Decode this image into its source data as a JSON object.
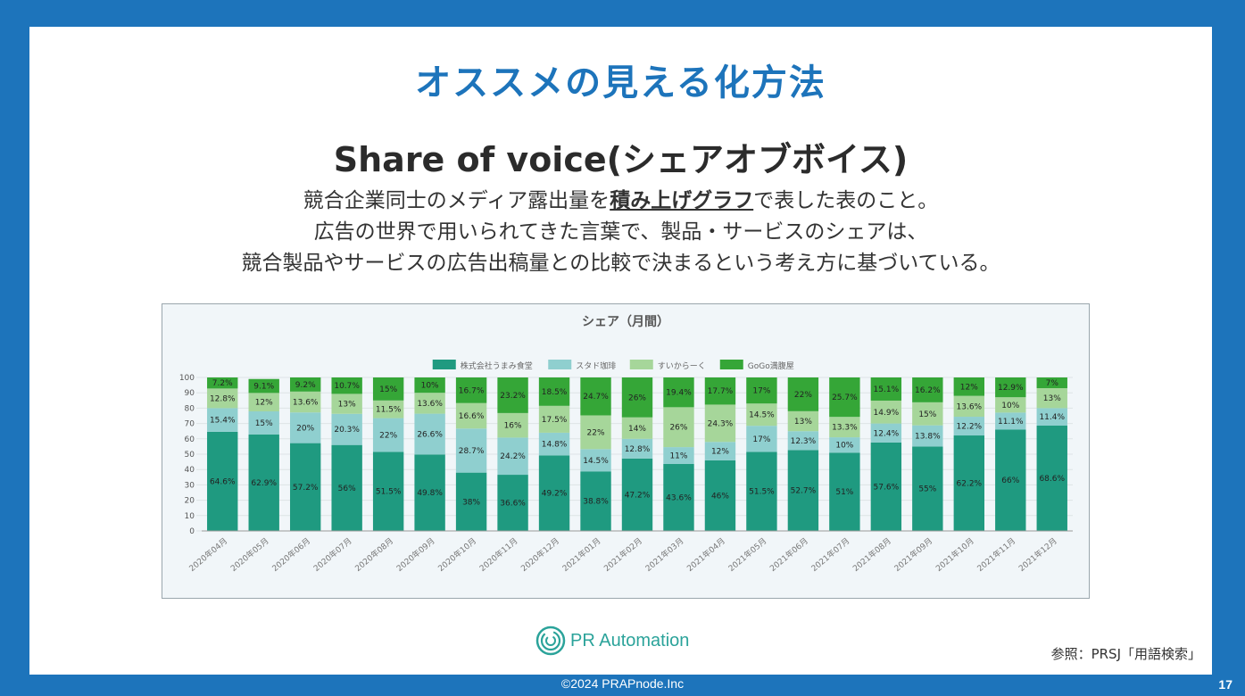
{
  "slide": {
    "title": "オススメの見える化方法",
    "subtitle": "Share of voice(シェアオブボイス)",
    "desc_line1_pre": "競合企業同士のメディア露出量を",
    "desc_line1_emph": "積み上げグラフ",
    "desc_line1_post": "で表した表のこと。",
    "desc_line2": "広告の世界で用いられてきた言葉で、製品・サービスのシェアは、",
    "desc_line3": "競合製品やサービスの広告出稿量との比較で決まるという考え方に基づいている。",
    "reference": "参照：PRSJ「用語検索」",
    "logo_text": "PR Automation"
  },
  "footer": {
    "copyright": "©2024 PRAPnode.Inc",
    "page_number": "17"
  },
  "colors": {
    "frame": "#1d74bb",
    "title": "#1d74bb",
    "series1": "#1f9a80",
    "series2": "#8fcfcf",
    "series3": "#a6d69a",
    "series4": "#35a637"
  },
  "chart_data": {
    "type": "bar",
    "stacked": true,
    "title": "シェア（月間）",
    "ylim": [
      0,
      100
    ],
    "yticks": [
      "0",
      "10",
      "20",
      "30",
      "40",
      "50",
      "60",
      "70",
      "80",
      "90",
      "100"
    ],
    "grid": true,
    "legend_position": "top",
    "categories": [
      "2020年04月",
      "2020年05月",
      "2020年06月",
      "2020年07月",
      "2020年08月",
      "2020年09月",
      "2020年10月",
      "2020年11月",
      "2020年12月",
      "2021年01月",
      "2021年02月",
      "2021年03月",
      "2021年04月",
      "2021年05月",
      "2021年06月",
      "2021年07月",
      "2021年08月",
      "2021年09月",
      "2021年10月",
      "2021年11月",
      "2021年12月"
    ],
    "series": [
      {
        "name": "株式会社うまみ食堂",
        "values": [
          64.6,
          62.9,
          57.2,
          56,
          51.5,
          49.8,
          38,
          36.6,
          49.2,
          38.8,
          47.2,
          43.6,
          46,
          51.5,
          52.7,
          51,
          57.6,
          55,
          62.2,
          66,
          68.6
        ],
        "labels": [
          "64.6%",
          "62.9%",
          "57.2%",
          "56%",
          "51.5%",
          "49.8%",
          "38%",
          "36.6%",
          "49.2%",
          "38.8%",
          "47.2%",
          "43.6%",
          "46%",
          "51.5%",
          "52.7%",
          "51%",
          "57.6%",
          "55%",
          "62.2%",
          "66%",
          "68.6%"
        ]
      },
      {
        "name": "スタド珈琲",
        "values": [
          15.4,
          15,
          20,
          20.3,
          22,
          26.6,
          28.7,
          24.2,
          14.8,
          14.5,
          12.8,
          11,
          12,
          17,
          12.3,
          10,
          12.4,
          13.8,
          12.2,
          11.1,
          11.4
        ],
        "labels": [
          "15.4%",
          "15%",
          "20%",
          "20.3%",
          "22%",
          "26.6%",
          "28.7%",
          "24.2%",
          "14.8%",
          "14.5%",
          "12.8%",
          "11%",
          "12%",
          "17%",
          "12.3%",
          "10%",
          "12.4%",
          "13.8%",
          "12.2%",
          "11.1%",
          "11.4%"
        ]
      },
      {
        "name": "すいからーく",
        "values": [
          12.8,
          12,
          13.6,
          13,
          11.5,
          13.6,
          16.6,
          16,
          17.5,
          22,
          14,
          26,
          24.3,
          14.5,
          13,
          13.3,
          14.9,
          15,
          13.6,
          10,
          13
        ],
        "labels": [
          "12.8%",
          "12%",
          "13.6%",
          "13%",
          "11.5%",
          "13.6%",
          "16.6%",
          "16%",
          "17.5%",
          "22%",
          "14%",
          "26%",
          "24.3%",
          "14.5%",
          "13%",
          "13.3%",
          "14.9%",
          "15%",
          "13.6%",
          "10%",
          "13%"
        ]
      },
      {
        "name": "GoGo満腹屋",
        "values": [
          7.2,
          9.1,
          9.2,
          10.7,
          15,
          10,
          16.7,
          23.2,
          18.5,
          24.7,
          26,
          19.4,
          17.7,
          17,
          22,
          25.7,
          15.1,
          16.2,
          12,
          12.9,
          7
        ],
        "labels": [
          "7.2%",
          "9.1%",
          "9.2%",
          "10.7%",
          "15%",
          "10%",
          "16.7%",
          "23.2%",
          "18.5%",
          "24.7%",
          "26%",
          "19.4%",
          "17.7%",
          "17%",
          "22%",
          "25.7%",
          "15.1%",
          "16.2%",
          "12%",
          "12.9%",
          "7%"
        ]
      }
    ]
  }
}
